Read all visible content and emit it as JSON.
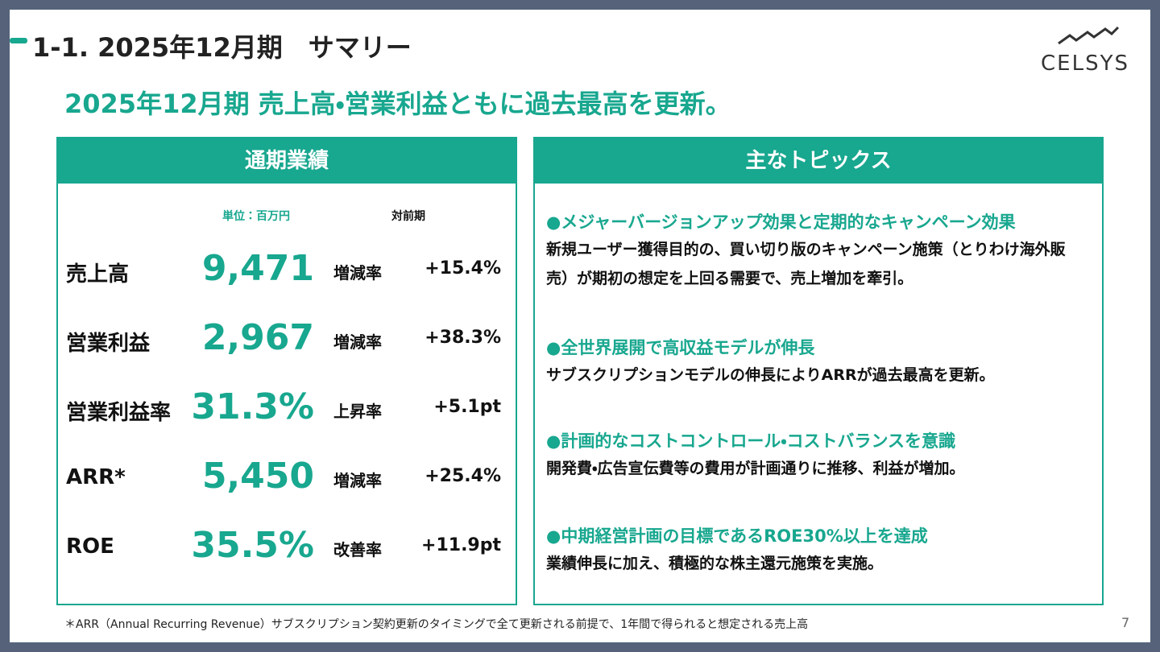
{
  "header": {
    "title": "1-1. 2025年12月期　サマリー",
    "logo": "CELSYS",
    "headline": "2025年12月期 売上高・営業利益ともに過去最高を更新。"
  },
  "results": {
    "title": "通期業績",
    "unit": "単位：百万円",
    "comparison": "対前期",
    "rows": [
      [
        "売上高",
        "9,471",
        "増減率",
        "+15.4%"
      ],
      [
        "営業利益",
        "2,967",
        "増減率",
        "+38.3%"
      ],
      [
        "営業利益率",
        "31.3%",
        "上昇率",
        "+5.1pt"
      ],
      [
        "ARR*",
        "5,450",
        "増減率",
        "+25.4%"
      ],
      [
        "ROE",
        "35.5%",
        "改善率",
        "+11.9pt"
      ]
    ]
  },
  "topics": {
    "title": "主なトピックス",
    "items": [
      {
        "heading": "●メジャーバージョンアップ効果と定期的なキャンペーン効果",
        "body": "新規ユーザー獲得目的の、買い切り版のキャンペーン施策（とりわけ海外販売）が期初の想定を上回る需要で、売上増加を牽引。"
      },
      {
        "heading": "●全世界展開で高収益モデルが伸長",
        "body": "サブスクリプションモデルの伸長によりARRが過去最高を更新。"
      },
      {
        "heading": "●計画的なコストコントロール・コストバランスを意識",
        "body": "開発費・広告宣伝費等の費用が計画通りに推移、利益が増加。"
      },
      {
        "heading": "●中期経営計画の目標であるROE30%以上を達成",
        "body": "業績伸長に加え、積極的な株主還元施策を実施。"
      }
    ]
  },
  "footnote": "＊ARR（Annual Recurring Revenue）サブスクリプション契約更新のタイミングで全て更新される前提で、1年間で得られると想定される売上高",
  "page_number": "7"
}
